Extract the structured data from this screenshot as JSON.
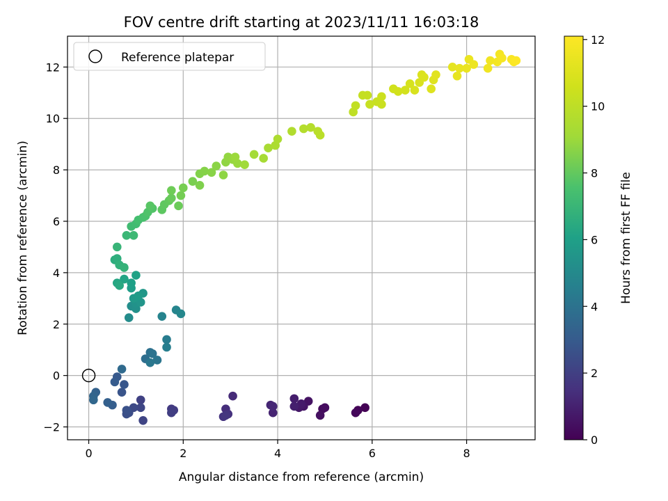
{
  "chart_data": {
    "type": "scatter",
    "title": "FOV centre drift starting at 2023/11/11 16:03:18",
    "xlabel": "Angular distance from reference (arcmin)",
    "ylabel": "Rotation from reference (arcmin)",
    "xlim": [
      -0.45,
      9.45
    ],
    "ylim": [
      -2.5,
      13.2
    ],
    "xticks": [
      0,
      2,
      4,
      6,
      8
    ],
    "yticks": [
      -2,
      0,
      2,
      4,
      6,
      8,
      10,
      12
    ],
    "grid": true,
    "legend": {
      "placement": "top-left",
      "entries": [
        "Reference platepar"
      ]
    },
    "reference_point": {
      "x": 0,
      "y": 0
    },
    "colorbar": {
      "label": "Hours from first FF file",
      "range": [
        0,
        12.1
      ],
      "ticks": [
        0,
        2,
        4,
        6,
        8,
        10,
        12
      ],
      "colormap": "viridis"
    },
    "points": [
      {
        "x": 5.85,
        "y": -1.25,
        "c": 0.05
      },
      {
        "x": 5.7,
        "y": -1.35,
        "c": 0.12
      },
      {
        "x": 5.65,
        "y": -1.45,
        "c": 0.2
      },
      {
        "x": 4.95,
        "y": -1.3,
        "c": 0.3
      },
      {
        "x": 5.0,
        "y": -1.25,
        "c": 0.38
      },
      {
        "x": 4.9,
        "y": -1.55,
        "c": 0.45
      },
      {
        "x": 4.65,
        "y": -1.0,
        "c": 0.55
      },
      {
        "x": 4.55,
        "y": -1.2,
        "c": 0.62
      },
      {
        "x": 4.45,
        "y": -1.25,
        "c": 0.7
      },
      {
        "x": 4.5,
        "y": -1.1,
        "c": 0.78
      },
      {
        "x": 4.35,
        "y": -0.9,
        "c": 0.85
      },
      {
        "x": 4.35,
        "y": -1.2,
        "c": 0.92
      },
      {
        "x": 3.9,
        "y": -1.45,
        "c": 1.05
      },
      {
        "x": 3.85,
        "y": -1.15,
        "c": 1.12
      },
      {
        "x": 3.9,
        "y": -1.2,
        "c": 1.2
      },
      {
        "x": 3.05,
        "y": -0.8,
        "c": 1.3
      },
      {
        "x": 2.9,
        "y": -1.3,
        "c": 1.4
      },
      {
        "x": 2.95,
        "y": -1.5,
        "c": 1.5
      },
      {
        "x": 2.85,
        "y": -1.6,
        "c": 1.58
      },
      {
        "x": 2.9,
        "y": -1.55,
        "c": 1.65
      },
      {
        "x": 1.75,
        "y": -1.3,
        "c": 1.8
      },
      {
        "x": 1.8,
        "y": -1.35,
        "c": 1.88
      },
      {
        "x": 1.75,
        "y": -1.45,
        "c": 1.95
      },
      {
        "x": 1.1,
        "y": -0.95,
        "c": 2.05
      },
      {
        "x": 1.15,
        "y": -1.75,
        "c": 2.15
      },
      {
        "x": 1.1,
        "y": -1.25,
        "c": 2.25
      },
      {
        "x": 0.95,
        "y": -1.25,
        "c": 2.35
      },
      {
        "x": 0.85,
        "y": -1.45,
        "c": 2.45
      },
      {
        "x": 0.8,
        "y": -1.5,
        "c": 2.55
      },
      {
        "x": 0.8,
        "y": -1.35,
        "c": 2.62
      },
      {
        "x": 0.7,
        "y": -0.65,
        "c": 2.72
      },
      {
        "x": 0.75,
        "y": -0.35,
        "c": 2.8
      },
      {
        "x": 0.6,
        "y": -0.05,
        "c": 2.9
      },
      {
        "x": 0.55,
        "y": -0.25,
        "c": 3.0
      },
      {
        "x": 0.5,
        "y": -1.15,
        "c": 3.1
      },
      {
        "x": 0.4,
        "y": -1.05,
        "c": 3.2
      },
      {
        "x": 0.15,
        "y": -0.65,
        "c": 3.3
      },
      {
        "x": 0.1,
        "y": -0.8,
        "c": 3.4
      },
      {
        "x": 0.1,
        "y": -0.95,
        "c": 3.5
      },
      {
        "x": 0.7,
        "y": 0.25,
        "c": 3.65
      },
      {
        "x": 1.2,
        "y": 0.65,
        "c": 3.8
      },
      {
        "x": 1.3,
        "y": 0.9,
        "c": 3.9
      },
      {
        "x": 1.35,
        "y": 0.85,
        "c": 4.0
      },
      {
        "x": 1.45,
        "y": 0.6,
        "c": 4.1
      },
      {
        "x": 1.3,
        "y": 0.5,
        "c": 4.2
      },
      {
        "x": 1.65,
        "y": 1.4,
        "c": 4.4
      },
      {
        "x": 1.65,
        "y": 1.1,
        "c": 4.5
      },
      {
        "x": 1.55,
        "y": 2.3,
        "c": 4.7
      },
      {
        "x": 1.85,
        "y": 2.55,
        "c": 4.8
      },
      {
        "x": 1.95,
        "y": 2.4,
        "c": 4.9
      },
      {
        "x": 0.85,
        "y": 2.25,
        "c": 5.1
      },
      {
        "x": 0.9,
        "y": 2.7,
        "c": 5.2
      },
      {
        "x": 1.0,
        "y": 2.6,
        "c": 5.3
      },
      {
        "x": 1.0,
        "y": 2.8,
        "c": 5.4
      },
      {
        "x": 1.1,
        "y": 2.85,
        "c": 5.5
      },
      {
        "x": 1.15,
        "y": 3.2,
        "c": 5.6
      },
      {
        "x": 0.95,
        "y": 3.0,
        "c": 5.7
      },
      {
        "x": 1.05,
        "y": 3.1,
        "c": 5.8
      },
      {
        "x": 0.9,
        "y": 3.4,
        "c": 5.9
      },
      {
        "x": 0.9,
        "y": 3.6,
        "c": 6.0
      },
      {
        "x": 1.0,
        "y": 3.9,
        "c": 6.1
      },
      {
        "x": 0.75,
        "y": 3.75,
        "c": 6.2
      },
      {
        "x": 0.6,
        "y": 3.6,
        "c": 6.3
      },
      {
        "x": 0.65,
        "y": 3.5,
        "c": 6.4
      },
      {
        "x": 0.55,
        "y": 4.5,
        "c": 6.55
      },
      {
        "x": 0.6,
        "y": 4.55,
        "c": 6.65
      },
      {
        "x": 0.65,
        "y": 4.3,
        "c": 6.75
      },
      {
        "x": 0.75,
        "y": 4.2,
        "c": 6.85
      },
      {
        "x": 0.6,
        "y": 5.0,
        "c": 6.95
      },
      {
        "x": 0.8,
        "y": 5.45,
        "c": 7.05
      },
      {
        "x": 0.95,
        "y": 5.45,
        "c": 7.15
      },
      {
        "x": 0.9,
        "y": 5.8,
        "c": 7.25
      },
      {
        "x": 1.0,
        "y": 5.9,
        "c": 7.3
      },
      {
        "x": 1.05,
        "y": 6.05,
        "c": 7.4
      },
      {
        "x": 1.15,
        "y": 6.15,
        "c": 7.5
      },
      {
        "x": 1.2,
        "y": 6.2,
        "c": 7.55
      },
      {
        "x": 1.25,
        "y": 6.35,
        "c": 7.65
      },
      {
        "x": 1.35,
        "y": 6.5,
        "c": 7.7
      },
      {
        "x": 1.3,
        "y": 6.6,
        "c": 7.8
      },
      {
        "x": 1.55,
        "y": 6.45,
        "c": 7.9
      },
      {
        "x": 1.6,
        "y": 6.65,
        "c": 7.95
      },
      {
        "x": 1.7,
        "y": 6.8,
        "c": 8.0
      },
      {
        "x": 1.75,
        "y": 6.9,
        "c": 8.1
      },
      {
        "x": 1.9,
        "y": 6.6,
        "c": 8.15
      },
      {
        "x": 1.75,
        "y": 7.2,
        "c": 8.2
      },
      {
        "x": 1.95,
        "y": 7.0,
        "c": 8.3
      },
      {
        "x": 2.0,
        "y": 7.3,
        "c": 8.35
      },
      {
        "x": 2.2,
        "y": 7.55,
        "c": 8.4
      },
      {
        "x": 2.35,
        "y": 7.4,
        "c": 8.5
      },
      {
        "x": 2.35,
        "y": 7.85,
        "c": 8.55
      },
      {
        "x": 2.45,
        "y": 7.95,
        "c": 8.6
      },
      {
        "x": 2.6,
        "y": 7.9,
        "c": 8.65
      },
      {
        "x": 2.7,
        "y": 8.15,
        "c": 8.7
      },
      {
        "x": 2.85,
        "y": 7.8,
        "c": 8.75
      },
      {
        "x": 2.9,
        "y": 8.3,
        "c": 8.8
      },
      {
        "x": 2.95,
        "y": 8.5,
        "c": 8.85
      },
      {
        "x": 3.05,
        "y": 8.4,
        "c": 8.9
      },
      {
        "x": 3.15,
        "y": 8.25,
        "c": 8.95
      },
      {
        "x": 3.1,
        "y": 8.5,
        "c": 9.0
      },
      {
        "x": 3.3,
        "y": 8.2,
        "c": 9.1
      },
      {
        "x": 3.5,
        "y": 8.6,
        "c": 9.2
      },
      {
        "x": 3.7,
        "y": 8.45,
        "c": 9.3
      },
      {
        "x": 3.8,
        "y": 8.85,
        "c": 9.35
      },
      {
        "x": 3.95,
        "y": 8.95,
        "c": 9.45
      },
      {
        "x": 4.0,
        "y": 9.2,
        "c": 9.5
      },
      {
        "x": 4.3,
        "y": 9.5,
        "c": 9.6
      },
      {
        "x": 4.55,
        "y": 9.6,
        "c": 9.7
      },
      {
        "x": 4.7,
        "y": 9.65,
        "c": 9.75
      },
      {
        "x": 4.85,
        "y": 9.5,
        "c": 9.85
      },
      {
        "x": 4.9,
        "y": 9.35,
        "c": 9.9
      },
      {
        "x": 5.6,
        "y": 10.25,
        "c": 10.05
      },
      {
        "x": 5.65,
        "y": 10.5,
        "c": 10.1
      },
      {
        "x": 5.8,
        "y": 10.9,
        "c": 10.2
      },
      {
        "x": 5.9,
        "y": 10.9,
        "c": 10.25
      },
      {
        "x": 5.95,
        "y": 10.55,
        "c": 10.3
      },
      {
        "x": 6.1,
        "y": 10.65,
        "c": 10.35
      },
      {
        "x": 6.2,
        "y": 10.55,
        "c": 10.4
      },
      {
        "x": 6.2,
        "y": 10.85,
        "c": 10.45
      },
      {
        "x": 6.45,
        "y": 11.15,
        "c": 10.6
      },
      {
        "x": 6.55,
        "y": 11.05,
        "c": 10.65
      },
      {
        "x": 6.7,
        "y": 11.1,
        "c": 10.7
      },
      {
        "x": 6.8,
        "y": 11.35,
        "c": 10.8
      },
      {
        "x": 6.9,
        "y": 11.1,
        "c": 10.85
      },
      {
        "x": 7.0,
        "y": 11.4,
        "c": 10.9
      },
      {
        "x": 7.05,
        "y": 11.7,
        "c": 10.95
      },
      {
        "x": 7.1,
        "y": 11.6,
        "c": 11.0
      },
      {
        "x": 7.25,
        "y": 11.15,
        "c": 11.05
      },
      {
        "x": 7.3,
        "y": 11.5,
        "c": 11.1
      },
      {
        "x": 7.35,
        "y": 11.7,
        "c": 11.15
      },
      {
        "x": 7.7,
        "y": 12.0,
        "c": 11.3
      },
      {
        "x": 7.8,
        "y": 11.65,
        "c": 11.35
      },
      {
        "x": 7.85,
        "y": 11.95,
        "c": 11.4
      },
      {
        "x": 8.0,
        "y": 11.95,
        "c": 11.45
      },
      {
        "x": 8.05,
        "y": 12.3,
        "c": 11.5
      },
      {
        "x": 8.15,
        "y": 12.1,
        "c": 11.55
      },
      {
        "x": 8.45,
        "y": 11.95,
        "c": 11.65
      },
      {
        "x": 8.5,
        "y": 12.25,
        "c": 11.7
      },
      {
        "x": 8.65,
        "y": 12.2,
        "c": 11.75
      },
      {
        "x": 8.7,
        "y": 12.5,
        "c": 11.8
      },
      {
        "x": 8.75,
        "y": 12.35,
        "c": 11.85
      },
      {
        "x": 8.95,
        "y": 12.3,
        "c": 11.95
      },
      {
        "x": 9.0,
        "y": 12.2,
        "c": 12.0
      },
      {
        "x": 9.05,
        "y": 12.25,
        "c": 12.05
      }
    ]
  }
}
